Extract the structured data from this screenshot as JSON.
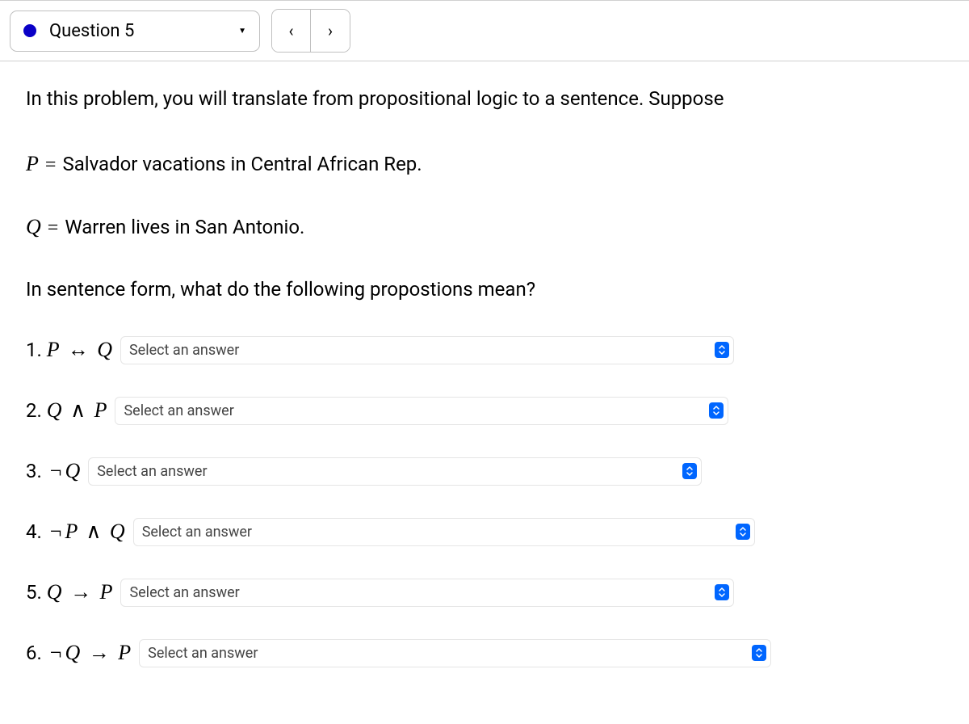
{
  "header": {
    "question_label": "Question 5",
    "status_color": "#0a00c7",
    "prev_glyph": "‹",
    "next_glyph": "›",
    "caret_glyph": "▼"
  },
  "content": {
    "instruction": "In this problem, you will translate from propositional logic to a sentence. Suppose",
    "definitions": [
      {
        "var": "P",
        "eq": "=",
        "text": "Salvador vacations in Central African Rep."
      },
      {
        "var": "Q",
        "eq": "=",
        "text": "Warren lives in San Antonio."
      }
    ],
    "prompt": "In sentence form, what do the following propostions mean?",
    "questions": [
      {
        "num": "1.",
        "expr_html": "<span class='math-var'>P</span> <span class='op'>↔</span> <span class='math-var'>Q</span>",
        "placeholder": "Select an answer",
        "width_class": "w1"
      },
      {
        "num": "2.",
        "expr_html": "<span class='math-var'>Q</span> <span class='op'>∧</span> <span class='math-var'>P</span>",
        "placeholder": "Select an answer",
        "width_class": "w2"
      },
      {
        "num": "3.",
        "expr_html": "<span class='op'>¬</span><span class='math-var'>Q</span>",
        "placeholder": "Select an answer",
        "width_class": "w3"
      },
      {
        "num": "4.",
        "expr_html": "<span class='op'>¬</span><span class='math-var'>P</span> <span class='op'>∧</span> <span class='math-var'>Q</span>",
        "placeholder": "Select an answer",
        "width_class": "w4"
      },
      {
        "num": "5.",
        "expr_html": "<span class='math-var'>Q</span> <span class='op'>→</span> <span class='math-var'>P</span>",
        "placeholder": "Select an answer",
        "width_class": "w5"
      },
      {
        "num": "6.",
        "expr_html": "<span class='op'>¬</span><span class='math-var'>Q</span> <span class='op'>→</span> <span class='math-var'>P</span>",
        "placeholder": "Select an answer",
        "width_class": "w6"
      }
    ]
  },
  "colors": {
    "border": "#d0d0d0",
    "select_border": "#e5e5e5",
    "stepper_bg": "#0066ff",
    "text": "#000000",
    "select_text": "#444444"
  }
}
